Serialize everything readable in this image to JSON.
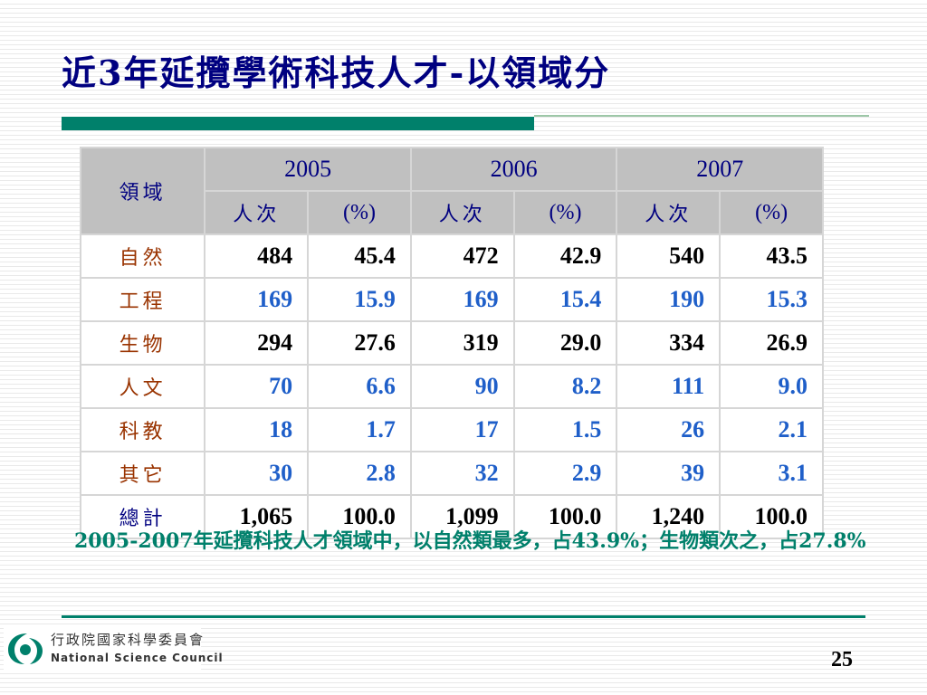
{
  "title": "近3年延攬學術科技人才-以領域分",
  "table": {
    "field_header": "領域",
    "years": [
      "2005",
      "2006",
      "2007"
    ],
    "sub_count": "人次",
    "sub_pct": "(%)",
    "rows": [
      {
        "label": "自然",
        "cells": [
          "484",
          "45.4",
          "472",
          "42.9",
          "540",
          "43.5"
        ]
      },
      {
        "label": "工程",
        "cells": [
          "169",
          "15.9",
          "169",
          "15.4",
          "190",
          "15.3"
        ]
      },
      {
        "label": "生物",
        "cells": [
          "294",
          "27.6",
          "319",
          "29.0",
          "334",
          "26.9"
        ]
      },
      {
        "label": "人文",
        "cells": [
          "70",
          "6.6",
          "90",
          "8.2",
          "111",
          "9.0"
        ]
      },
      {
        "label": "科教",
        "cells": [
          "18",
          "1.7",
          "17",
          "1.5",
          "26",
          "2.1"
        ]
      },
      {
        "label": "其它",
        "cells": [
          "30",
          "2.8",
          "32",
          "2.9",
          "39",
          "3.1"
        ]
      },
      {
        "label": "總計",
        "cells": [
          "1,065",
          "100.0",
          "1,099",
          "100.0",
          "1,240",
          "100.0"
        ]
      }
    ]
  },
  "note": "2005-2007年延攬科技人才領域中，以自然類最多，占43.9%；生物類次之，占27.8%",
  "logo": {
    "zh": "行政院國家科學委員會",
    "en": "National Science Council"
  },
  "page_number": "25",
  "colors": {
    "title": "#000080",
    "accent": "#00806b",
    "header_bg": "#c0c0c0",
    "row_label": "#993300",
    "blue_numbers": "#1f5fc9"
  }
}
